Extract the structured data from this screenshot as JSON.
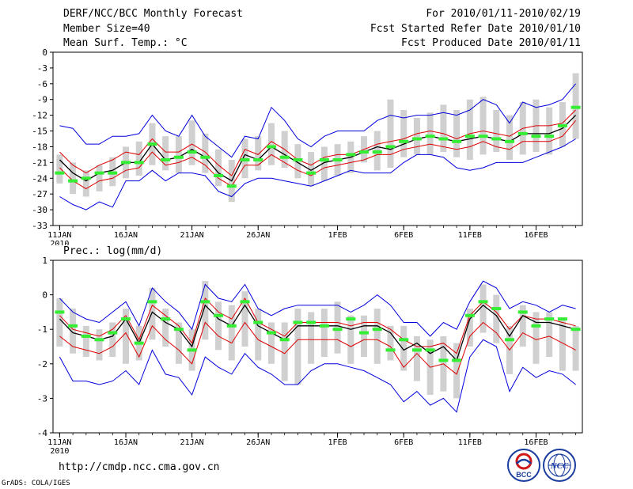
{
  "header": {
    "title": "DERF/NCC/BCC Monthly Forecast",
    "member_size": "Member Size=40",
    "variable": "Mean Surf. Temp.: °C",
    "period": "For 2010/01/11-2010/02/19",
    "fcst_started": "Fcst Started Refer Date 2010/01/10",
    "fcst_produced": "Fcst Produced Date 2010/01/11"
  },
  "footer": {
    "url": "http://cmdp.ncc.cma.gov.cn",
    "credit": "GrADS: COLA/IGES",
    "logo_bcc": "BCC",
    "logo_ncc": "NCC"
  },
  "colors": {
    "envelope": "#0000dd",
    "spread": "#dd0000",
    "mean": "#000000",
    "obs": "#33ee33",
    "bar": "#d0d0d0"
  },
  "chart_data": [
    {
      "type": "line",
      "name": "temperature",
      "ylabel": "Mean Surf. Temp.: °C",
      "ylim": [
        -33,
        0
      ],
      "yticks": [
        0,
        -3,
        -6,
        -9,
        -12,
        -15,
        -18,
        -21,
        -24,
        -27,
        -30,
        -33
      ],
      "x": [
        1,
        2,
        3,
        4,
        5,
        6,
        7,
        8,
        9,
        10,
        11,
        12,
        13,
        14,
        15,
        16,
        17,
        18,
        19,
        20,
        21,
        22,
        23,
        24,
        25,
        26,
        27,
        28,
        29,
        30,
        31,
        32,
        33,
        34,
        35,
        36,
        37,
        38,
        39,
        40
      ],
      "xlim": [
        0.5,
        40.5
      ],
      "xticks": [
        {
          "x": 1,
          "label": "11JAN",
          "sub": "2010"
        },
        {
          "x": 6,
          "label": "16JAN"
        },
        {
          "x": 11,
          "label": "21JAN"
        },
        {
          "x": 16,
          "label": "26JAN"
        },
        {
          "x": 22,
          "label": "1FEB"
        },
        {
          "x": 27,
          "label": "6FEB"
        },
        {
          "x": 32,
          "label": "11FEB"
        },
        {
          "x": 37,
          "label": "16FEB"
        }
      ],
      "bars_low": [
        -25,
        -27,
        -27.5,
        -26.5,
        -25.5,
        -24,
        -23.5,
        -21.5,
        -22.5,
        -23,
        -21.5,
        -23,
        -25.5,
        -28.5,
        -24,
        -22.5,
        -21.5,
        -22,
        -24,
        -25.5,
        -24.5,
        -23.5,
        -23,
        -21,
        -22.5,
        -22,
        -20,
        -19.5,
        -19.5,
        -19,
        -20,
        -20.5,
        -19.5,
        -19,
        -20.5,
        -19.5,
        -19,
        -19.5,
        -18,
        -16.5
      ],
      "bars_high": [
        -19.5,
        -21,
        -22.5,
        -21.5,
        -20,
        -18,
        -17,
        -13.5,
        -16,
        -16,
        -13,
        -15.5,
        -18.5,
        -20.5,
        -16.5,
        -16,
        -13.5,
        -15,
        -17.5,
        -19,
        -18,
        -17.5,
        -17,
        -16,
        -15,
        -9,
        -11,
        -12.5,
        -11.5,
        -10,
        -11,
        -9,
        -8.5,
        -11,
        -12,
        -9.5,
        -9,
        -10.5,
        -9.5,
        -4
      ],
      "series": [
        {
          "name": "ensemble max",
          "color": "#0000dd",
          "values": [
            -14,
            -14.5,
            -17.5,
            -17.5,
            -16,
            -16,
            -15.5,
            -12,
            -15,
            -16,
            -12,
            -16,
            -18,
            -20,
            -16,
            -16.5,
            -10.5,
            -13,
            -16.5,
            -18,
            -16,
            -15,
            -15,
            -15,
            -13,
            -12,
            -12.5,
            -12,
            -12,
            -11.5,
            -12,
            -11,
            -9,
            -10,
            -13.5,
            -9.5,
            -10.5,
            -10,
            -9,
            -6
          ]
        },
        {
          "name": "ensemble mean + sd",
          "color": "#dd0000",
          "values": [
            -19,
            -21.5,
            -23,
            -21.5,
            -20.5,
            -19,
            -19.5,
            -16.5,
            -19,
            -19,
            -17.5,
            -19,
            -21.5,
            -23.5,
            -18.5,
            -19.5,
            -17,
            -18.5,
            -20.5,
            -21.5,
            -20,
            -19.5,
            -19.5,
            -18.5,
            -17.5,
            -17,
            -16.5,
            -15.5,
            -15,
            -15.5,
            -16.5,
            -15.5,
            -15,
            -15.5,
            -16,
            -14.5,
            -14,
            -14,
            -13.5,
            -11
          ]
        },
        {
          "name": "ensemble mean",
          "color": "#000000",
          "values": [
            -20.5,
            -23,
            -24.5,
            -23,
            -22.5,
            -21,
            -21,
            -17.5,
            -20.5,
            -20,
            -18.5,
            -20,
            -23,
            -24.5,
            -19.5,
            -20.5,
            -18,
            -19.5,
            -21,
            -22.5,
            -21,
            -20.5,
            -20,
            -19,
            -18,
            -18.5,
            -17.5,
            -16.5,
            -16,
            -16.5,
            -17,
            -16.5,
            -16,
            -16.5,
            -17,
            -15.5,
            -15.5,
            -15.5,
            -14.5,
            -12
          ]
        },
        {
          "name": "ensemble mean - sd",
          "color": "#dd0000",
          "values": [
            -22,
            -24.5,
            -26,
            -24.5,
            -24,
            -22.5,
            -22,
            -19,
            -21.5,
            -21,
            -20,
            -21.5,
            -24,
            -25.5,
            -21.5,
            -21.5,
            -19.5,
            -21,
            -22.5,
            -23.5,
            -22,
            -21.5,
            -21,
            -20.5,
            -19.5,
            -19.5,
            -18.5,
            -18,
            -17.5,
            -18,
            -18.5,
            -18,
            -17,
            -18,
            -18.5,
            -17,
            -17,
            -17,
            -16,
            -13
          ]
        },
        {
          "name": "ensemble min",
          "color": "#0000dd",
          "values": [
            -27.5,
            -29,
            -30,
            -28.5,
            -29.5,
            -24.5,
            -24.5,
            -22.5,
            -24.5,
            -23,
            -23,
            -23.5,
            -26.5,
            -27.5,
            -25,
            -24,
            -24,
            -24.5,
            -25,
            -25.5,
            -24.5,
            -23.5,
            -22.5,
            -23,
            -23,
            -23,
            -21,
            -19.5,
            -19.5,
            -20,
            -22,
            -22.5,
            -22,
            -21,
            -21,
            -21,
            -20,
            -19,
            -18,
            -16.5
          ]
        }
      ],
      "obs": [
        -23,
        -24.5,
        -24,
        -23,
        -23,
        -21,
        -21,
        -17.5,
        -20.5,
        -20,
        -19,
        -20,
        -23.5,
        -25.5,
        -20.5,
        -20.5,
        -18,
        -20,
        -20.5,
        -23,
        -20.5,
        -20.5,
        -19.5,
        -19,
        -19,
        -18,
        -17,
        -16.5,
        -16,
        -16.5,
        -17,
        -16,
        -16,
        -16.5,
        -17,
        -15.5,
        -16,
        -16,
        -14,
        -10.5
      ]
    },
    {
      "type": "line",
      "name": "precipitation",
      "ylabel": "Prec.: log(mm/d)",
      "ylim": [
        -4,
        1
      ],
      "yticks": [
        1,
        0,
        -1,
        -2,
        -3,
        -4
      ],
      "x": [
        1,
        2,
        3,
        4,
        5,
        6,
        7,
        8,
        9,
        10,
        11,
        12,
        13,
        14,
        15,
        16,
        17,
        18,
        19,
        20,
        21,
        22,
        23,
        24,
        25,
        26,
        27,
        28,
        29,
        30,
        31,
        32,
        33,
        34,
        35,
        36,
        37,
        38,
        39,
        40
      ],
      "xlim": [
        0.5,
        40.5
      ],
      "xticks": [
        {
          "x": 1,
          "label": "11JAN",
          "sub": "2010"
        },
        {
          "x": 6,
          "label": "16JAN"
        },
        {
          "x": 11,
          "label": "21JAN"
        },
        {
          "x": 16,
          "label": "26JAN"
        },
        {
          "x": 22,
          "label": "1FEB"
        },
        {
          "x": 27,
          "label": "6FEB"
        },
        {
          "x": 32,
          "label": "11FEB"
        },
        {
          "x": 37,
          "label": "16FEB"
        }
      ],
      "bars_low": [
        -1.5,
        -1.7,
        -1.8,
        -1.9,
        -1.8,
        -2,
        -1.9,
        -1.3,
        -1.5,
        -2,
        -2.2,
        -1.3,
        -1.6,
        -1.9,
        -1.5,
        -1.9,
        -2,
        -2.5,
        -2.6,
        -2,
        -1.8,
        -1.7,
        -2,
        -1.8,
        -2,
        -1.9,
        -2.2,
        -2.5,
        -2.9,
        -2.8,
        -3,
        -1.5,
        -1.1,
        -1.4,
        -2.3,
        -1.5,
        -2,
        -1.8,
        -2.2,
        -2.2
      ],
      "bars_high": [
        -0.1,
        -0.4,
        -0.9,
        -1,
        -0.8,
        -0.4,
        -0.9,
        0.2,
        -0.4,
        -0.8,
        -1,
        0.4,
        -0.2,
        -0.3,
        0.1,
        -0.4,
        -0.8,
        -0.8,
        -0.4,
        -0.5,
        -0.4,
        -0.2,
        -0.6,
        -0.6,
        -0.4,
        -0.9,
        -0.9,
        -1.2,
        -1.3,
        -1.2,
        -1.4,
        -0.4,
        0.3,
        0,
        -0.9,
        -0.3,
        -0.5,
        -0.5,
        -0.7,
        -0.9
      ],
      "series": [
        {
          "name": "ensemble max",
          "color": "#0000dd",
          "values": [
            -0.1,
            -0.5,
            -0.7,
            -0.8,
            -0.5,
            -0.2,
            -0.9,
            0.2,
            -0.2,
            -0.5,
            -1,
            0.3,
            -0.1,
            -0.2,
            0.3,
            -0.4,
            -0.6,
            -0.4,
            -0.3,
            -0.3,
            -0.3,
            -0.3,
            -0.5,
            -0.3,
            0,
            -0.3,
            -0.8,
            -0.8,
            -1.2,
            -0.8,
            -1,
            -0.2,
            0.4,
            0.2,
            -0.4,
            -0.2,
            -0.3,
            -0.5,
            -0.3,
            -0.4
          ]
        },
        {
          "name": "ensemble mean + sd",
          "color": "#dd0000",
          "values": [
            -0.6,
            -1,
            -1.1,
            -1.2,
            -1,
            -0.6,
            -1.3,
            -0.3,
            -0.6,
            -0.9,
            -1.4,
            -0.1,
            -0.5,
            -0.7,
            -0.1,
            -0.8,
            -1,
            -1.2,
            -0.8,
            -0.8,
            -0.8,
            -0.8,
            -0.9,
            -0.8,
            -0.8,
            -1,
            -1.3,
            -1.5,
            -1.5,
            -1.4,
            -1.7,
            -0.6,
            -0.2,
            -0.5,
            -1,
            -0.6,
            -0.7,
            -0.7,
            -0.8,
            -0.9
          ]
        },
        {
          "name": "ensemble mean",
          "color": "#000000",
          "values": [
            -0.7,
            -1.1,
            -1.2,
            -1.3,
            -1.2,
            -0.7,
            -1.4,
            -0.5,
            -0.8,
            -1,
            -1.5,
            -0.3,
            -0.7,
            -0.9,
            -0.3,
            -0.9,
            -1.1,
            -1.3,
            -0.9,
            -0.9,
            -0.9,
            -0.9,
            -1,
            -0.9,
            -0.9,
            -1.1,
            -1.6,
            -1.4,
            -1.7,
            -1.5,
            -1.9,
            -0.7,
            -0.3,
            -0.6,
            -1.2,
            -0.6,
            -0.8,
            -0.8,
            -0.9,
            -1
          ]
        },
        {
          "name": "ensemble mean - sd",
          "color": "#dd0000",
          "values": [
            -1.2,
            -1.5,
            -1.6,
            -1.7,
            -1.5,
            -1.1,
            -1.8,
            -0.9,
            -1.3,
            -1.6,
            -2,
            -0.8,
            -1.2,
            -1.4,
            -0.8,
            -1.3,
            -1.5,
            -1.7,
            -1.3,
            -1.3,
            -1.3,
            -1.3,
            -1.5,
            -1.3,
            -1.3,
            -1.5,
            -2.1,
            -1.7,
            -2.1,
            -2,
            -2.3,
            -1.2,
            -0.8,
            -1.1,
            -1.6,
            -1.1,
            -1.3,
            -1.2,
            -1.4,
            -1.6
          ]
        },
        {
          "name": "ensemble min",
          "color": "#0000dd",
          "values": [
            -1.8,
            -2.5,
            -2.5,
            -2.6,
            -2.5,
            -2.2,
            -2.6,
            -1.6,
            -2.3,
            -2.4,
            -2.9,
            -1.8,
            -2.1,
            -2.3,
            -1.7,
            -2.1,
            -2.3,
            -2.6,
            -2.6,
            -2.2,
            -2,
            -2,
            -2.1,
            -2.2,
            -2.4,
            -2.6,
            -3.1,
            -2.8,
            -3.2,
            -3,
            -3.4,
            -1.8,
            -1.3,
            -1.5,
            -2.8,
            -2.1,
            -2.4,
            -2.2,
            -2.3,
            -2.6
          ]
        }
      ],
      "obs": [
        -0.5,
        -0.9,
        -1.2,
        -1.3,
        -1.1,
        -0.7,
        -1.4,
        -0.2,
        -0.7,
        -1,
        -1.6,
        -0.2,
        -0.6,
        -0.9,
        -0.2,
        -0.8,
        -1.1,
        -1.3,
        -0.8,
        -0.8,
        -0.9,
        -1,
        -0.7,
        -1.1,
        -1,
        -1.6,
        -1.3,
        -1.6,
        -1.6,
        -1.9,
        -1.9,
        -0.6,
        -0.2,
        -0.4,
        -1.3,
        -0.5,
        -0.9,
        -0.7,
        -0.7,
        -1
      ]
    }
  ]
}
